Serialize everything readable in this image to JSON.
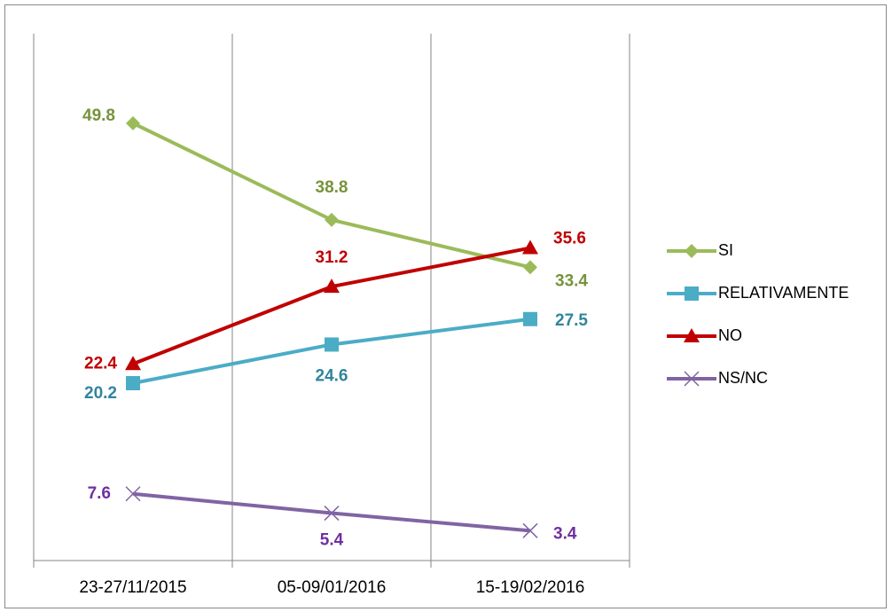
{
  "chart_data": {
    "type": "line",
    "categories": [
      "23-27/11/2015",
      "05-09/01/2016",
      "15-19/02/2016"
    ],
    "series": [
      {
        "name": "SI",
        "color": "#9bbb59",
        "label_color": "#77933c",
        "marker": "diamond",
        "values": [
          49.8,
          38.8,
          33.4
        ]
      },
      {
        "name": "RELATIVAMENTE",
        "color": "#4bacc6",
        "label_color": "#31859c",
        "marker": "square",
        "values": [
          20.2,
          24.6,
          27.5
        ]
      },
      {
        "name": "NO",
        "color": "#c00000",
        "label_color": "#c00000",
        "marker": "triangle",
        "values": [
          22.4,
          31.2,
          35.6
        ]
      },
      {
        "name": "NS/NC",
        "color": "#8064a2",
        "label_color": "#7030a0",
        "marker": "x",
        "values": [
          7.6,
          5.4,
          3.4
        ]
      }
    ],
    "ylim": [
      0,
      60
    ],
    "grid": true,
    "legend": "right"
  }
}
